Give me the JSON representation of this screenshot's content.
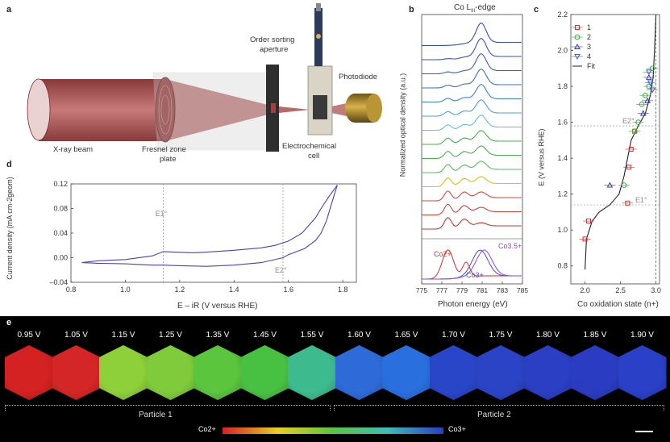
{
  "panel_a": {
    "label": "a",
    "labels": {
      "xray_beam": "X-ray beam",
      "fresnel": "Fresnel zone",
      "fresnel2": "plate",
      "osa1": "Order sorting",
      "osa2": "aperture",
      "electrochem1": "Electrochemical",
      "electrochem2": "cell",
      "photodiode": "Photodiode"
    }
  },
  "panel_b": {
    "label": "b",
    "title_main": "Co L",
    "title_sub": "III",
    "title_end": "-edge",
    "ylabel": "Normalized optical density (a.u.)",
    "xlabel": "Photon energy (eV)",
    "xticks": [
      "775",
      "777",
      "779",
      "781",
      "783",
      "785"
    ],
    "ref_labels": {
      "co2": "Co2+",
      "co3": "Co3+",
      "co35": "Co3.5+"
    }
  },
  "panel_c": {
    "label": "c",
    "ylabel": "E (V versus RHE)",
    "xlabel": "Co oxidation state (n+)",
    "yticks": [
      "0.8",
      "1.0",
      "1.2",
      "1.4",
      "1.6",
      "1.8",
      "2.0",
      "2.2"
    ],
    "xticks": [
      "2.0",
      "2.5",
      "3.0"
    ],
    "legend": [
      "1",
      "2",
      "3",
      "4",
      "Fit"
    ],
    "e1_label": "E1°",
    "e2_label": "E2°"
  },
  "panel_d": {
    "label": "d",
    "ylabel": "Current density (mA cm-2geom)",
    "xlabel": "E – iR (V versus RHE)",
    "xticks": [
      "0.8",
      "1.0",
      "1.2",
      "1.4",
      "1.6",
      "1.8"
    ],
    "yticks": [
      "0.12",
      "0.08",
      "0.04",
      "0.00",
      "–0.04"
    ],
    "e1_label": "E1°",
    "e2_label": "E2°"
  },
  "panel_e": {
    "label": "e",
    "voltages": [
      "0.95 V",
      "1.05 V",
      "1.15 V",
      "1.25 V",
      "1.35 V",
      "1.45 V",
      "1.55 V",
      "1.60 V",
      "1.65 V",
      "1.70 V",
      "1.75 V",
      "1.80 V",
      "1.85 V",
      "1.90 V"
    ],
    "crystal_colors": [
      "#d42121",
      "#d42626",
      "#8ed03a",
      "#7fcb3b",
      "#5ac53d",
      "#48c142",
      "#3ebb8e",
      "#2e6bd8",
      "#2a6fde",
      "#2a46c8",
      "#2b44c6",
      "#2a3fc4",
      "#2a3dc2",
      "#2a40c6"
    ],
    "particle1": "Particle 1",
    "particle2": "Particle 2",
    "scale_left": "Co2+",
    "scale_right": "Co3+"
  },
  "chart_data": [
    {
      "type": "line",
      "panel": "b",
      "title": "Co LIII-edge",
      "xlabel": "Photon energy (eV)",
      "ylabel": "Normalized optical density (a.u.)",
      "xlim": [
        775,
        785
      ],
      "series_colors": [
        "#c0392b",
        "#c8473a",
        "#d44a40",
        "#e8b820",
        "#5cb85c",
        "#4cae4c",
        "#48b048",
        "#5bc0de",
        "#4aa0d8",
        "#3e82c8",
        "#3a6fc0",
        "#3860b8",
        "#3656b0",
        "#3450a8"
      ],
      "reference": [
        {
          "name": "Co2+",
          "color": "#d62c2c",
          "peak": 777.6
        },
        {
          "name": "Co3+",
          "color": "#4a4ad0",
          "peak": 780.8
        },
        {
          "name": "Co3.5+",
          "color": "#8a4ad0",
          "peak": 781.2
        }
      ]
    },
    {
      "type": "scatter",
      "panel": "c",
      "xlabel": "Co oxidation state (n+)",
      "ylabel": "E (V versus RHE)",
      "xlim": [
        1.8,
        3.05
      ],
      "ylim": [
        0.7,
        2.2
      ],
      "series": [
        {
          "name": "1",
          "marker": "square",
          "color": "#d62c2c",
          "x": [
            2.0,
            2.05,
            2.6,
            2.62,
            2.65,
            2.7
          ],
          "y": [
            0.95,
            1.05,
            1.15,
            1.35,
            1.45,
            1.55
          ]
        },
        {
          "name": "2",
          "marker": "circle",
          "color": "#3aaa3a",
          "x": [
            2.55,
            2.7,
            2.75,
            2.8,
            2.85,
            2.9,
            2.95
          ],
          "y": [
            1.25,
            1.55,
            1.6,
            1.7,
            1.75,
            1.8,
            1.9
          ]
        },
        {
          "name": "3",
          "marker": "triangle-up",
          "color": "#3a3aaa",
          "x": [
            2.35,
            2.82,
            2.88,
            2.9
          ],
          "y": [
            1.25,
            1.65,
            1.72,
            1.85
          ]
        },
        {
          "name": "4",
          "marker": "triangle-down",
          "color": "#4060c0",
          "x": [
            2.95,
            2.92,
            2.9
          ],
          "y": [
            1.78,
            1.82,
            1.88
          ]
        }
      ],
      "fit": {
        "name": "Fit",
        "x": [
          2.0,
          2.02,
          2.1,
          2.2,
          2.35,
          2.48,
          2.55,
          2.6,
          2.65,
          2.75,
          2.85,
          2.92,
          2.96,
          2.98,
          3.0
        ],
        "y": [
          0.78,
          0.95,
          1.05,
          1.1,
          1.14,
          1.2,
          1.3,
          1.4,
          1.5,
          1.58,
          1.65,
          1.75,
          1.85,
          2.0,
          2.2
        ]
      },
      "hlines": {
        "E1": 1.14,
        "E2": 1.58
      },
      "vline": 3.0
    },
    {
      "type": "line",
      "panel": "d",
      "xlabel": "E – iR (V versus RHE)",
      "ylabel": "Current density (mA cm-2geom)",
      "xlim": [
        0.8,
        1.85
      ],
      "ylim": [
        -0.04,
        0.12
      ],
      "vlines": {
        "E1": 1.14,
        "E2": 1.58
      },
      "series": [
        {
          "name": "anodic",
          "color": "#5040b0",
          "x": [
            0.84,
            0.9,
            1.0,
            1.1,
            1.14,
            1.18,
            1.25,
            1.3,
            1.4,
            1.5,
            1.55,
            1.6,
            1.65,
            1.7,
            1.72,
            1.75,
            1.78
          ],
          "y": [
            -0.008,
            -0.005,
            -0.003,
            0.003,
            0.01,
            0.009,
            0.008,
            0.009,
            0.012,
            0.016,
            0.02,
            0.027,
            0.04,
            0.065,
            0.08,
            0.1,
            0.118
          ]
        },
        {
          "name": "cathodic",
          "color": "#5040b0",
          "x": [
            1.78,
            1.76,
            1.74,
            1.72,
            1.7,
            1.66,
            1.6,
            1.58,
            1.5,
            1.4,
            1.3,
            1.2,
            1.14,
            1.1,
            1.0,
            0.9,
            0.84
          ],
          "y": [
            0.118,
            0.09,
            0.06,
            0.04,
            0.028,
            0.015,
            0.005,
            0.0,
            -0.008,
            -0.012,
            -0.014,
            -0.013,
            -0.012,
            -0.012,
            -0.01,
            -0.009,
            -0.008
          ]
        }
      ]
    }
  ]
}
